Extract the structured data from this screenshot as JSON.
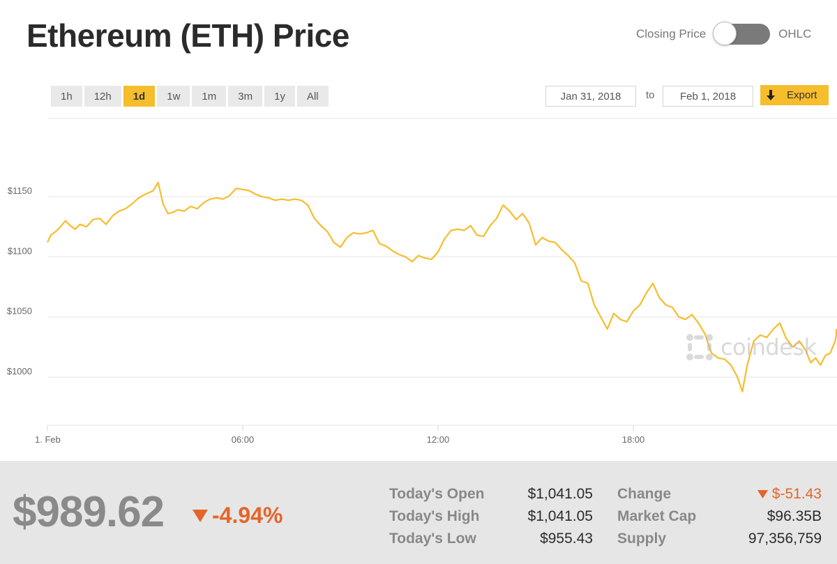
{
  "header": {
    "title": "Ethereum (ETH) Price",
    "toggle_left": "Closing Price",
    "toggle_right": "OHLC"
  },
  "controls": {
    "ranges": [
      "1h",
      "12h",
      "1d",
      "1w",
      "1m",
      "3m",
      "1y",
      "All"
    ],
    "active_range": "1d",
    "date_from": "Jan 31, 2018",
    "date_to_label": "to",
    "date_to": "Feb 1, 2018",
    "export_label": "Export"
  },
  "watermark": "coindesk",
  "colors": {
    "line": "#f6bd2c",
    "accent": "#f6bd2c",
    "negative": "#e3652a"
  },
  "chart_data": {
    "type": "line",
    "x_unit": "hours since 1. Feb 00:00",
    "xlim": [
      0,
      23.6
    ],
    "ylim": [
      960,
      1215
    ],
    "y_ticks": [
      1000,
      1050,
      1100,
      1150
    ],
    "y_tick_labels": [
      "$1000",
      "$1050",
      "$1100",
      "$1150"
    ],
    "x_ticks": [
      0,
      6,
      12,
      18
    ],
    "x_tick_labels": [
      "1. Feb",
      "06:00",
      "12:00",
      "18:00"
    ],
    "grid": true,
    "series": [
      {
        "values": [
          [
            0.0,
            1112
          ],
          [
            0.1,
            1118
          ],
          [
            0.25,
            1121
          ],
          [
            0.4,
            1125
          ],
          [
            0.55,
            1130
          ],
          [
            0.7,
            1126
          ],
          [
            0.85,
            1123
          ],
          [
            1.0,
            1127
          ],
          [
            1.2,
            1125
          ],
          [
            1.4,
            1131
          ],
          [
            1.6,
            1132
          ],
          [
            1.8,
            1127
          ],
          [
            2.0,
            1134
          ],
          [
            2.2,
            1138
          ],
          [
            2.4,
            1140
          ],
          [
            2.6,
            1144
          ],
          [
            2.8,
            1149
          ],
          [
            3.0,
            1152
          ],
          [
            3.25,
            1155
          ],
          [
            3.4,
            1162
          ],
          [
            3.55,
            1144
          ],
          [
            3.7,
            1136
          ],
          [
            3.85,
            1137
          ],
          [
            4.0,
            1139
          ],
          [
            4.2,
            1138
          ],
          [
            4.4,
            1142
          ],
          [
            4.6,
            1140
          ],
          [
            4.8,
            1145
          ],
          [
            5.0,
            1148
          ],
          [
            5.2,
            1149
          ],
          [
            5.4,
            1148
          ],
          [
            5.6,
            1151
          ],
          [
            5.8,
            1157
          ],
          [
            6.0,
            1156
          ],
          [
            6.2,
            1155
          ],
          [
            6.4,
            1152
          ],
          [
            6.6,
            1150
          ],
          [
            6.8,
            1149
          ],
          [
            7.0,
            1147
          ],
          [
            7.2,
            1148
          ],
          [
            7.4,
            1147
          ],
          [
            7.6,
            1148
          ],
          [
            7.8,
            1147
          ],
          [
            8.0,
            1143
          ],
          [
            8.2,
            1132
          ],
          [
            8.4,
            1126
          ],
          [
            8.6,
            1121
          ],
          [
            8.8,
            1112
          ],
          [
            9.0,
            1108
          ],
          [
            9.2,
            1116
          ],
          [
            9.4,
            1120
          ],
          [
            9.6,
            1119
          ],
          [
            9.8,
            1120
          ],
          [
            10.0,
            1122
          ],
          [
            10.2,
            1111
          ],
          [
            10.4,
            1109
          ],
          [
            10.6,
            1105
          ],
          [
            10.8,
            1102
          ],
          [
            11.0,
            1100
          ],
          [
            11.2,
            1096
          ],
          [
            11.4,
            1101
          ],
          [
            11.6,
            1099
          ],
          [
            11.8,
            1098
          ],
          [
            12.0,
            1104
          ],
          [
            12.2,
            1115
          ],
          [
            12.4,
            1122
          ],
          [
            12.6,
            1123
          ],
          [
            12.8,
            1122
          ],
          [
            13.0,
            1126
          ],
          [
            13.2,
            1118
          ],
          [
            13.4,
            1117
          ],
          [
            13.6,
            1126
          ],
          [
            13.8,
            1132
          ],
          [
            14.0,
            1143
          ],
          [
            14.2,
            1138
          ],
          [
            14.4,
            1131
          ],
          [
            14.6,
            1136
          ],
          [
            14.8,
            1128
          ],
          [
            15.0,
            1110
          ],
          [
            15.2,
            1116
          ],
          [
            15.4,
            1113
          ],
          [
            15.6,
            1112
          ],
          [
            15.8,
            1106
          ],
          [
            16.0,
            1101
          ],
          [
            16.2,
            1095
          ],
          [
            16.4,
            1080
          ],
          [
            16.6,
            1078
          ],
          [
            16.8,
            1060
          ],
          [
            17.0,
            1050
          ],
          [
            17.2,
            1040
          ],
          [
            17.4,
            1053
          ],
          [
            17.6,
            1048
          ],
          [
            17.8,
            1046
          ],
          [
            18.0,
            1055
          ],
          [
            18.2,
            1060
          ],
          [
            18.4,
            1070
          ],
          [
            18.6,
            1078
          ],
          [
            18.8,
            1066
          ],
          [
            19.0,
            1060
          ],
          [
            19.2,
            1058
          ],
          [
            19.4,
            1050
          ],
          [
            19.6,
            1048
          ],
          [
            19.8,
            1052
          ],
          [
            20.0,
            1045
          ],
          [
            20.2,
            1036
          ],
          [
            20.4,
            1020
          ],
          [
            20.6,
            1016
          ],
          [
            20.8,
            1015
          ],
          [
            21.0,
            1010
          ],
          [
            21.2,
            1000
          ],
          [
            21.35,
            988
          ],
          [
            21.5,
            1010
          ],
          [
            21.7,
            1030
          ],
          [
            21.9,
            1035
          ],
          [
            22.1,
            1033
          ],
          [
            22.3,
            1040
          ],
          [
            22.5,
            1045
          ],
          [
            22.7,
            1032
          ],
          [
            22.9,
            1025
          ],
          [
            23.1,
            1030
          ],
          [
            23.3,
            1022
          ],
          [
            23.45,
            1012
          ],
          [
            23.6,
            1016
          ],
          [
            23.75,
            1010
          ],
          [
            23.9,
            1018
          ],
          [
            24.05,
            1020
          ],
          [
            24.2,
            1030
          ],
          [
            24.4,
            1035
          ],
          [
            24.55,
            1040
          ]
        ]
      }
    ]
  },
  "stats": {
    "current_price": "$989.62",
    "change_pct": "-4.94%",
    "rows": [
      {
        "label": "Today's Open",
        "value": "$1,041.05"
      },
      {
        "label": "Today's High",
        "value": "$1,041.05"
      },
      {
        "label": "Today's Low",
        "value": "$955.43"
      }
    ],
    "rows_right": [
      {
        "label": "Change",
        "value": "$-51.43",
        "negative": true
      },
      {
        "label": "Market Cap",
        "value": "$96.35B"
      },
      {
        "label": "Supply",
        "value": "97,356,759"
      }
    ]
  }
}
